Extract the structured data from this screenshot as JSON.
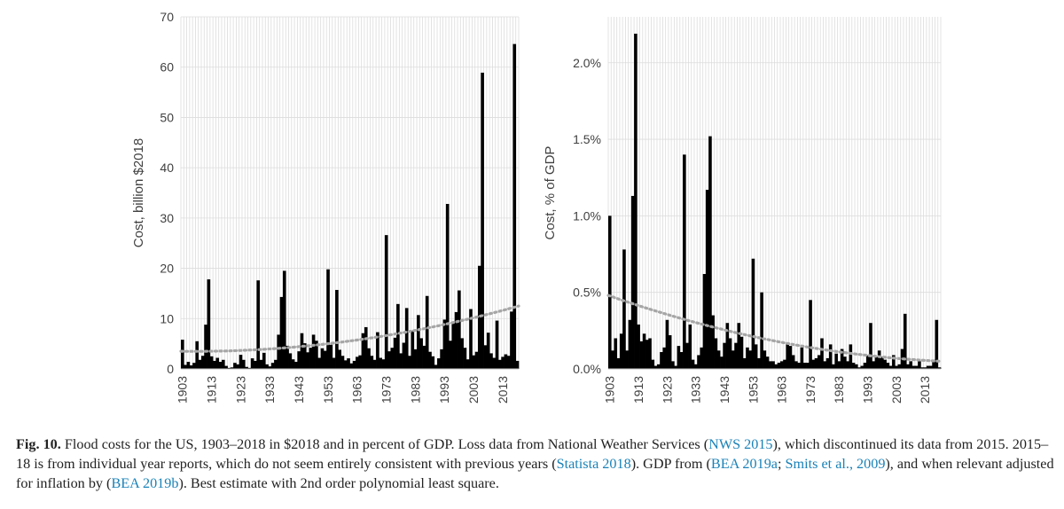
{
  "chart_data": [
    {
      "type": "bar",
      "ylabel": "Cost, billion $2018",
      "xlabel": "",
      "ylim": [
        0,
        70
      ],
      "yticks": [
        0,
        10,
        20,
        30,
        40,
        50,
        60,
        70
      ],
      "ytick_labels": [
        "0",
        "10",
        "20",
        "30",
        "40",
        "50",
        "60",
        "70"
      ],
      "x_start": 1903,
      "x_end": 2018,
      "xtick_labels": [
        "1903",
        "1913",
        "1923",
        "1933",
        "1943",
        "1953",
        "1963",
        "1973",
        "1983",
        "1993",
        "2003",
        "2013"
      ],
      "grid": true,
      "bar_color": "#000000",
      "trend_color": "#a6a6a6",
      "trend_label": "2nd order polynomial least square",
      "trend": [
        3.5,
        3.1,
        12.5
      ],
      "values": [
        5.8,
        0.8,
        1.4,
        0.7,
        1.2,
        5.5,
        1.8,
        2.6,
        8.8,
        17.8,
        2.5,
        1.6,
        2.2,
        1.4,
        1.8,
        0.6,
        0.2,
        0.3,
        1.2,
        0.9,
        2.8,
        1.8,
        0.4,
        0.2,
        2.1,
        1.6,
        17.6,
        1.8,
        3.2,
        0.9,
        0.5,
        1.2,
        1.8,
        6.8,
        14.3,
        19.5,
        4.6,
        3.1,
        1.9,
        1.4,
        3.5,
        7.1,
        5.1,
        3.3,
        4.2,
        6.8,
        5.6,
        2.2,
        4.1,
        3.6,
        19.8,
        4.8,
        2.2,
        15.7,
        3.8,
        2.6,
        1.7,
        2.1,
        1.1,
        1.6,
        2.4,
        2.7,
        7.1,
        8.3,
        4.1,
        2.6,
        1.8,
        7.3,
        2.2,
        1.9,
        26.6,
        3.5,
        4.2,
        6.2,
        12.9,
        3.1,
        5.2,
        12.1,
        2.6,
        7.6,
        3.9,
        10.7,
        6.1,
        4.6,
        14.5,
        3.4,
        2.5,
        0.8,
        2.1,
        3.9,
        9.8,
        32.8,
        5.6,
        9.2,
        11.3,
        15.6,
        6.1,
        4.2,
        1.9,
        11.9,
        2.7,
        3.4,
        20.5,
        58.9,
        4.7,
        7.2,
        3.1,
        2.2,
        9.6,
        1.8,
        2.4,
        2.9,
        2.6,
        11.4,
        64.6,
        1.6
      ]
    },
    {
      "type": "bar",
      "ylabel": "Cost, % of GDP",
      "xlabel": "",
      "ylim": [
        0,
        2.3
      ],
      "yticks": [
        0,
        0.5,
        1.0,
        1.5,
        2.0
      ],
      "ytick_labels": [
        "0.0%",
        "0.5%",
        "1.0%",
        "1.5%",
        "2.0%"
      ],
      "x_start": 1903,
      "x_end": 2018,
      "xtick_labels": [
        "1903",
        "1913",
        "1923",
        "1933",
        "1943",
        "1953",
        "1963",
        "1973",
        "1983",
        "1993",
        "2003",
        "2013"
      ],
      "grid": true,
      "bar_color": "#000000",
      "trend_color": "#a6a6a6",
      "trend_label": "2nd order polynomial least square",
      "trend": [
        0.48,
        0.1,
        0.05
      ],
      "values": [
        1.0,
        0.12,
        0.2,
        0.07,
        0.23,
        0.78,
        0.12,
        0.32,
        1.13,
        2.19,
        0.29,
        0.18,
        0.23,
        0.19,
        0.2,
        0.06,
        0.02,
        0.03,
        0.11,
        0.14,
        0.32,
        0.22,
        0.05,
        0.02,
        0.15,
        0.11,
        1.4,
        0.17,
        0.29,
        0.06,
        0.03,
        0.09,
        0.14,
        0.62,
        1.17,
        1.52,
        0.35,
        0.2,
        0.12,
        0.08,
        0.17,
        0.3,
        0.2,
        0.12,
        0.17,
        0.3,
        0.21,
        0.07,
        0.14,
        0.12,
        0.72,
        0.16,
        0.07,
        0.5,
        0.12,
        0.08,
        0.05,
        0.05,
        0.03,
        0.04,
        0.05,
        0.06,
        0.16,
        0.15,
        0.09,
        0.05,
        0.04,
        0.14,
        0.04,
        0.04,
        0.45,
        0.06,
        0.07,
        0.09,
        0.2,
        0.05,
        0.07,
        0.16,
        0.03,
        0.1,
        0.05,
        0.13,
        0.08,
        0.05,
        0.16,
        0.04,
        0.03,
        0.01,
        0.02,
        0.04,
        0.09,
        0.3,
        0.05,
        0.08,
        0.12,
        0.08,
        0.06,
        0.04,
        0.02,
        0.09,
        0.02,
        0.03,
        0.13,
        0.36,
        0.03,
        0.05,
        0.02,
        0.02,
        0.05,
        0.01,
        0.01,
        0.02,
        0.02,
        0.06,
        0.32,
        0.01
      ]
    }
  ],
  "caption": {
    "label": "Fig. 10.",
    "t1": " Flood costs for the US, 1903–2018 in $2018 and in percent of GDP. Loss data from National Weather Services (",
    "r1": "NWS 2015",
    "t2": "), which discontinued its data from 2015. 2015–18 is from individual year reports, which do not seem entirely consistent with previous years (",
    "r2": "Statista 2018",
    "t3": "). GDP from (",
    "r3": "BEA 2019a",
    "t4": "; ",
    "r4": "Smits et al., 2009",
    "t5": "), and when relevant adjusted for inflation by (",
    "r5": "BEA 2019b",
    "t6": "). Best estimate with 2nd order polynomial least square."
  }
}
